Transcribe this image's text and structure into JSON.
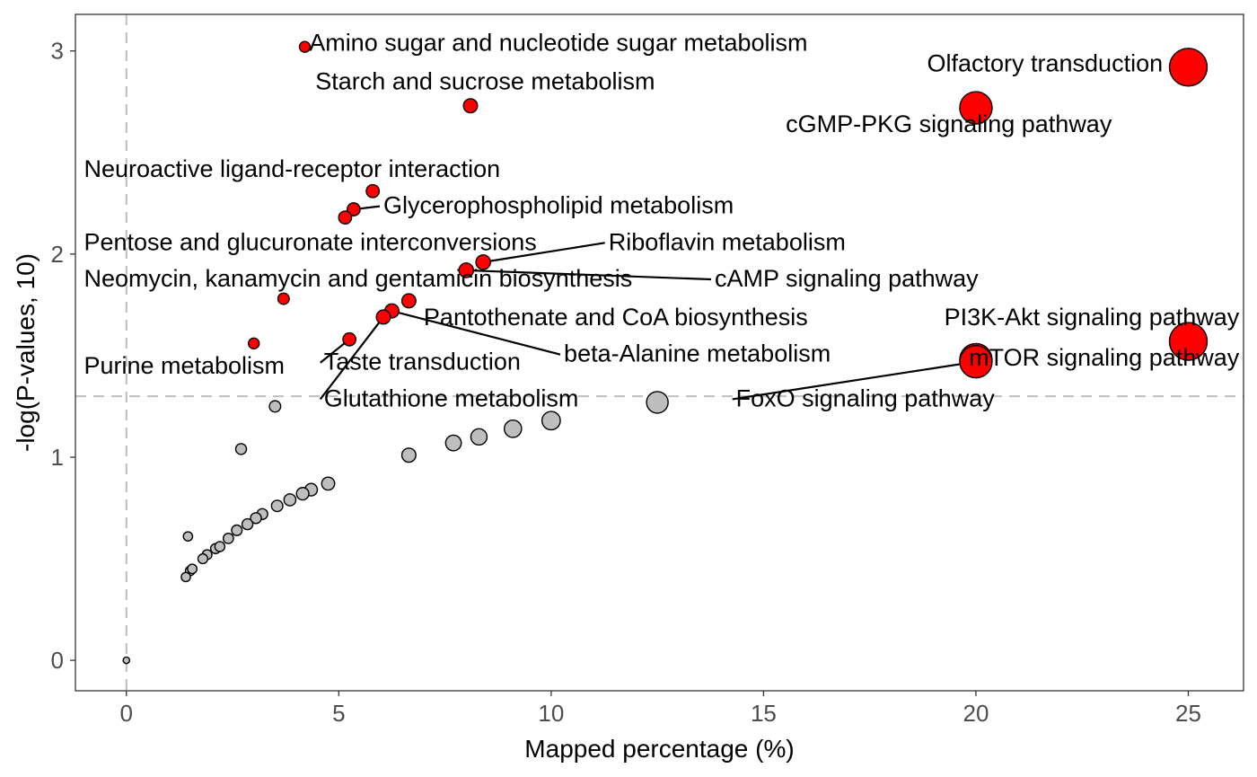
{
  "chart_data": {
    "type": "scatter",
    "title": "",
    "xlabel": "Mapped percentage (%)",
    "ylabel": "-log(P-values, 10)",
    "xlim": [
      -1.2,
      26.3
    ],
    "ylim": [
      -0.15,
      3.18
    ],
    "x_ticks": [
      0,
      5,
      10,
      15,
      20,
      25
    ],
    "y_ticks": [
      0,
      1,
      2,
      3
    ],
    "x_tick_labels": [
      "0",
      "5",
      "10",
      "15",
      "20",
      "25"
    ],
    "y_tick_labels": [
      "0",
      "1",
      "2",
      "3"
    ],
    "threshold_y": 1.3,
    "reference_x": 0,
    "grid": false,
    "colors": {
      "significant": "#ff0000",
      "nonsignificant": "#bebebe",
      "outline": "#000000",
      "reference_line": "#bebebe"
    },
    "labeled_points": [
      {
        "label": "Amino sugar and nucleotide sugar metabolism",
        "x": 4.2,
        "y": 3.02,
        "size": 1.0
      },
      {
        "label": "Starch and sucrose metabolism",
        "x": 8.1,
        "y": 2.73,
        "size": 1.6
      },
      {
        "label": "Olfactory transduction",
        "x": 25.0,
        "y": 2.92,
        "size": 6.0
      },
      {
        "label": "cGMP-PKG signaling pathway",
        "x": 20.0,
        "y": 2.72,
        "size": 5.0
      },
      {
        "label": "Neuroactive ligand-receptor interaction",
        "x": 5.8,
        "y": 2.31,
        "size": 1.4
      },
      {
        "label": "Glycerophospholipid metabolism",
        "x": 5.35,
        "y": 2.22,
        "size": 1.4
      },
      {
        "label": "Pentose and glucuronate interconversions",
        "x": 5.15,
        "y": 2.18,
        "size": 1.4
      },
      {
        "label": "Riboflavin metabolism",
        "x": 8.4,
        "y": 1.96,
        "size": 1.7
      },
      {
        "label": "Neomycin, kanamycin and gentamicin biosynthesis",
        "x": 3.7,
        "y": 1.78,
        "size": 1.1
      },
      {
        "label": "cAMP signaling pathway",
        "x": 8.0,
        "y": 1.92,
        "size": 1.7
      },
      {
        "label": "Pantothenate and CoA biosynthesis",
        "x": 6.65,
        "y": 1.77,
        "size": 1.6
      },
      {
        "label": "beta-Alanine metabolism",
        "x": 6.25,
        "y": 1.72,
        "size": 1.6
      },
      {
        "label": "PI3K-Akt signaling pathway",
        "x": 25.0,
        "y": 1.57,
        "size": 6.0
      },
      {
        "label": "mTOR signaling pathway",
        "x": 20.0,
        "y": 1.48,
        "size": 5.0
      },
      {
        "label": "Purine metabolism",
        "x": 3.0,
        "y": 1.56,
        "size": 1.0
      },
      {
        "label": "Taste transduction",
        "x": 5.25,
        "y": 1.58,
        "size": 1.4
      },
      {
        "label": "Glutathione metabolism",
        "x": 6.05,
        "y": 1.69,
        "size": 1.6
      },
      {
        "label": "FoxO signaling pathway",
        "x": 20.0,
        "y": 1.47,
        "size": 5.0
      }
    ],
    "unlabeled_points": [
      {
        "x": 12.5,
        "y": 1.27,
        "size": 3.0
      },
      {
        "x": 10.0,
        "y": 1.18,
        "size": 2.4
      },
      {
        "x": 9.1,
        "y": 1.14,
        "size": 2.2
      },
      {
        "x": 8.3,
        "y": 1.1,
        "size": 2.0
      },
      {
        "x": 7.7,
        "y": 1.07,
        "size": 1.9
      },
      {
        "x": 6.65,
        "y": 1.01,
        "size": 1.6
      },
      {
        "x": 4.75,
        "y": 0.87,
        "size": 1.4
      },
      {
        "x": 4.35,
        "y": 0.84,
        "size": 1.3
      },
      {
        "x": 4.15,
        "y": 0.82,
        "size": 1.3
      },
      {
        "x": 3.85,
        "y": 0.79,
        "size": 1.2
      },
      {
        "x": 3.55,
        "y": 0.76,
        "size": 1.1
      },
      {
        "x": 3.2,
        "y": 0.72,
        "size": 1.0
      },
      {
        "x": 3.05,
        "y": 0.7,
        "size": 1.0
      },
      {
        "x": 2.85,
        "y": 0.67,
        "size": 1.0
      },
      {
        "x": 2.6,
        "y": 0.64,
        "size": 0.95
      },
      {
        "x": 2.4,
        "y": 0.6,
        "size": 0.9
      },
      {
        "x": 2.1,
        "y": 0.55,
        "size": 0.85
      },
      {
        "x": 2.2,
        "y": 0.56,
        "size": 0.85
      },
      {
        "x": 1.9,
        "y": 0.52,
        "size": 0.8
      },
      {
        "x": 1.8,
        "y": 0.5,
        "size": 0.8
      },
      {
        "x": 1.5,
        "y": 0.44,
        "size": 0.75
      },
      {
        "x": 1.55,
        "y": 0.45,
        "size": 0.75
      },
      {
        "x": 1.4,
        "y": 0.41,
        "size": 0.7
      },
      {
        "x": 1.45,
        "y": 0.61,
        "size": 0.7
      },
      {
        "x": 3.5,
        "y": 1.25,
        "size": 1.1
      },
      {
        "x": 2.7,
        "y": 1.04,
        "size": 1.0
      },
      {
        "x": 0.0,
        "y": 0.0,
        "size": 0.2
      }
    ],
    "text_labels": [
      {
        "text": "Amino sugar and nucleotide sugar metabolism",
        "x": 4.3,
        "y": 3.0,
        "anchor": "start",
        "line_to": null
      },
      {
        "text": "Starch and sucrose metabolism",
        "x": 4.45,
        "y": 2.81,
        "anchor": "start",
        "line_to": null
      },
      {
        "text": "Olfactory transduction",
        "x": 24.4,
        "y": 2.9,
        "anchor": "end",
        "line_to": null
      },
      {
        "text": "cGMP-PKG signaling pathway",
        "x": 23.2,
        "y": 2.6,
        "anchor": "end",
        "line_to": null
      },
      {
        "text": "Neuroactive ligand-receptor interaction",
        "x": -1.0,
        "y": 2.38,
        "anchor": "start",
        "line_to": null
      },
      {
        "text": "Glycerophospholipid metabolism",
        "x": 6.05,
        "y": 2.2,
        "anchor": "start",
        "line_to": [
          5.35,
          2.22
        ]
      },
      {
        "text": "Pentose and glucuronate interconversions",
        "x": -1.0,
        "y": 2.02,
        "anchor": "start",
        "line_to": null
      },
      {
        "text": "Riboflavin metabolism",
        "x": 11.35,
        "y": 2.02,
        "anchor": "start",
        "line_to": [
          8.4,
          1.96
        ]
      },
      {
        "text": "Neomycin, kanamycin and gentamicin biosynthesis",
        "x": -1.0,
        "y": 1.84,
        "anchor": "start",
        "line_to": null
      },
      {
        "text": "cAMP signaling pathway",
        "x": 13.85,
        "y": 1.84,
        "anchor": "start",
        "line_to": [
          8.0,
          1.92
        ]
      },
      {
        "text": "Pantothenate and CoA biosynthesis",
        "x": 7.0,
        "y": 1.65,
        "anchor": "start",
        "line_to": null
      },
      {
        "text": "PI3K-Akt signaling pathway",
        "x": 26.2,
        "y": 1.65,
        "anchor": "end",
        "line_to": null
      },
      {
        "text": "beta-Alanine metabolism",
        "x": 10.3,
        "y": 1.47,
        "anchor": "start",
        "line_to": [
          6.25,
          1.72
        ]
      },
      {
        "text": "mTOR signaling pathway",
        "x": 26.2,
        "y": 1.45,
        "anchor": "end",
        "line_to": null
      },
      {
        "text": "Purine metabolism",
        "x": -1.0,
        "y": 1.41,
        "anchor": "start",
        "line_to": null
      },
      {
        "text": "Taste transduction",
        "x": 4.65,
        "y": 1.43,
        "anchor": "start",
        "line_to": [
          5.25,
          1.58
        ]
      },
      {
        "text": "Glutathione metabolism",
        "x": 4.65,
        "y": 1.25,
        "anchor": "start",
        "line_to": [
          6.05,
          1.69
        ]
      },
      {
        "text": "FoxO signaling pathway",
        "x": 14.35,
        "y": 1.25,
        "anchor": "start",
        "line_to": [
          20.0,
          1.47
        ]
      }
    ]
  }
}
